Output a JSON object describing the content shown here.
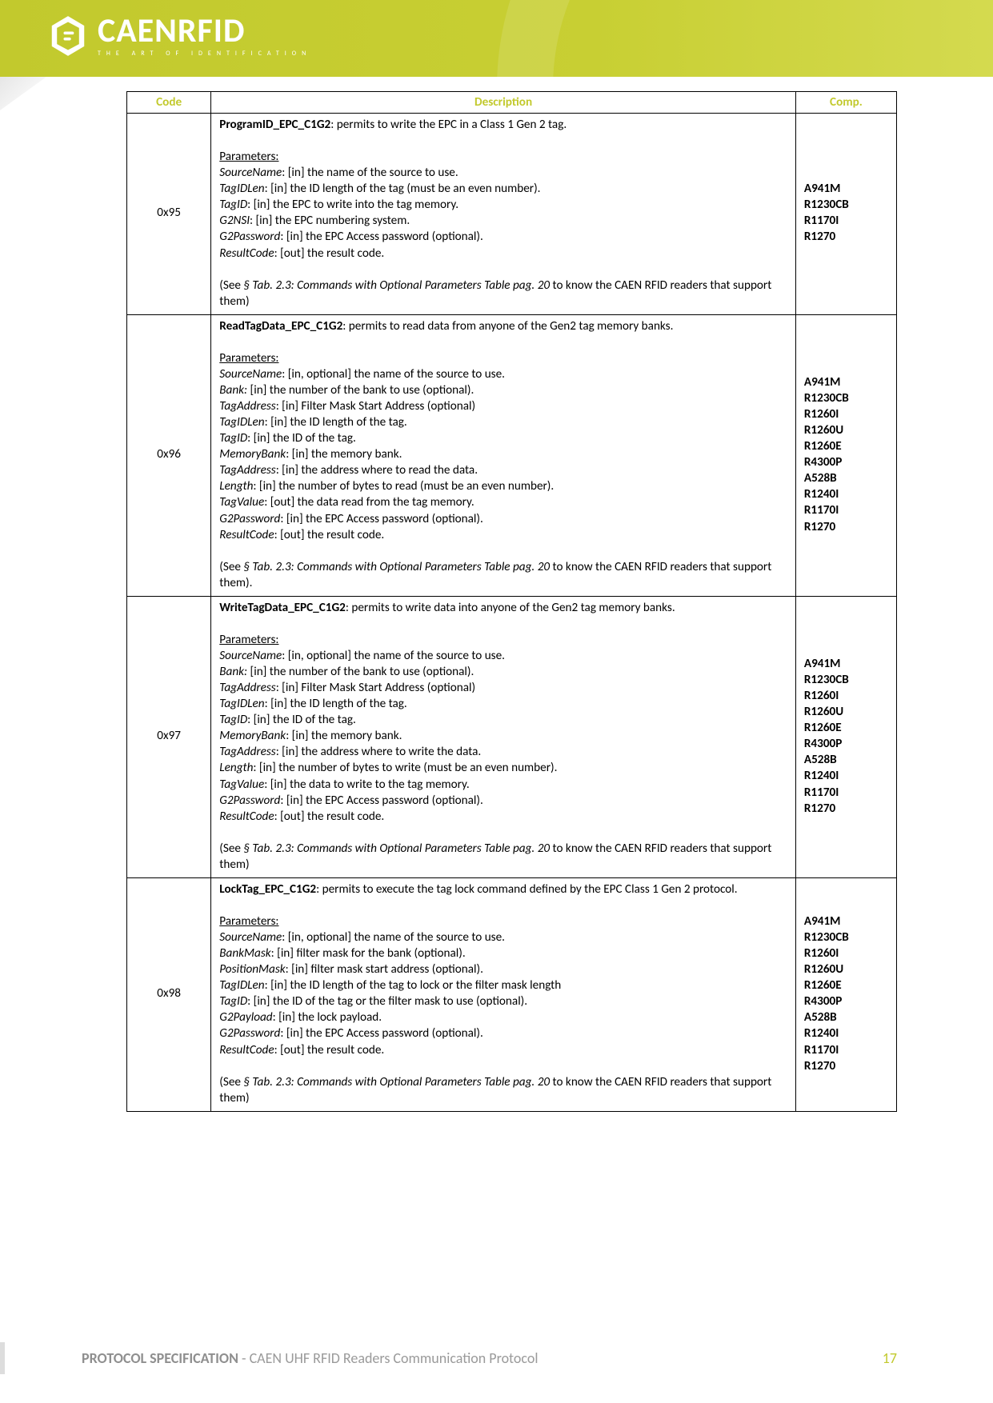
{
  "logo": {
    "brand": "CAENRFID",
    "tagline": "THE ART OF IDENTIFICATION"
  },
  "table": {
    "headers": {
      "code": "Code",
      "description": "Description",
      "comp": "Comp."
    },
    "rows": [
      {
        "code": "0x95",
        "title": "ProgramID_EPC_C1G2",
        "title_rest": ": permits to write the EPC in a Class 1 Gen 2 tag.",
        "params_header": "Parameters:",
        "params": [
          {
            "name": "SourceName",
            "rest": ": [in] the name of the source to use."
          },
          {
            "name": "TagIDLen",
            "rest": ": [in] the ID length of the tag (must be an even number)."
          },
          {
            "name": "TagID",
            "rest": ": [in] the EPC to write into the tag memory."
          },
          {
            "name": "G2NSI",
            "rest": ": [in] the EPC numbering system."
          },
          {
            "name": "G2Password",
            "rest": ": [in] the EPC Access password (optional)."
          },
          {
            "name": "ResultCode",
            "rest": ": [out] the result code."
          }
        ],
        "see_pre": "(See ",
        "see_ref": "§ Tab. 2.3: Commands with Optional Parameters Table pag. 20",
        "see_post": " to know the CAEN RFID readers that support them)",
        "comp": [
          "A941M",
          "R1230CB",
          "R1170I",
          "R1270"
        ]
      },
      {
        "code": "0x96",
        "title": "ReadTagData_EPC_C1G2",
        "title_rest": ": permits to read data from anyone of the Gen2 tag memory banks.",
        "params_header": "Parameters:",
        "params": [
          {
            "name": "SourceName",
            "rest": ": [in, optional] the name of the source to use."
          },
          {
            "name": "Bank:",
            "rest": " [in] the number of the bank to use (optional)."
          },
          {
            "name": "TagAddress",
            "rest": ": [in] Filter Mask Start Address (optional)"
          },
          {
            "name": "TagIDLen",
            "rest": ": [in] the ID length of the tag."
          },
          {
            "name": "TagID",
            "rest": ": [in] the ID of the tag."
          },
          {
            "name": "MemoryBank",
            "rest": ": [in] the memory bank."
          },
          {
            "name": "TagAddress",
            "rest": ": [in] the address where to read the data."
          },
          {
            "name": "Length",
            "rest": ": [in] the number of bytes to read (must be an even number)."
          },
          {
            "name": "TagValue",
            "rest": ": [out] the data read from the tag memory."
          },
          {
            "name": "G2Password",
            "rest": ": [in] the EPC Access password (optional)."
          },
          {
            "name": "ResultCode",
            "rest": ": [out] the result code."
          }
        ],
        "see_pre": "(See ",
        "see_ref": "§ Tab. 2.3: Commands with Optional Parameters Table pag. 20",
        "see_post": " to know the CAEN RFID readers that support them).",
        "comp": [
          "A941M",
          "R1230CB",
          "R1260I",
          "R1260U",
          "R1260E",
          "R4300P",
          "A528B",
          "R1240I",
          "R1170I",
          "R1270"
        ]
      },
      {
        "code": "0x97",
        "title": "WriteTagData_EPC_C1G2",
        "title_rest": ": permits to write data into anyone of the Gen2 tag memory banks.",
        "params_header": "Parameters:",
        "params": [
          {
            "name": "SourceName",
            "rest": ": [in, optional] the name of the source to use."
          },
          {
            "name": "Bank:",
            "rest": " [in] the number of the bank to use (optional)."
          },
          {
            "name": "TagAddress",
            "rest": ": [in] Filter Mask Start Address (optional)"
          },
          {
            "name": "TagIDLen",
            "rest": ": [in] the ID length of the tag."
          },
          {
            "name": "TagID",
            "rest": ": [in] the ID of the tag."
          },
          {
            "name": "MemoryBank",
            "rest": ": [in] the memory bank."
          },
          {
            "name": "TagAddress",
            "rest": ": [in] the address where to write the data."
          },
          {
            "name": "Length",
            "rest": ": [in] the number of bytes to write (must be an even number)."
          },
          {
            "name": "TagValue",
            "rest": ": [in] the data to write to the tag memory."
          },
          {
            "name": "G2Password",
            "rest": ": [in] the EPC Access password (optional)."
          },
          {
            "name": "ResultCode",
            "rest": ": [out] the result code."
          }
        ],
        "see_pre": "(See ",
        "see_ref": "§ Tab. 2.3: Commands with Optional Parameters Table pag. 20",
        "see_post": " to know the CAEN RFID readers that support them)",
        "comp": [
          "A941M",
          "R1230CB",
          "R1260I",
          "R1260U",
          "R1260E",
          "R4300P",
          "A528B",
          "R1240I",
          "R1170I",
          "R1270"
        ]
      },
      {
        "code": "0x98",
        "title": "LockTag_EPC_C1G2",
        "title_rest": ": permits to execute the tag lock command defined by the EPC Class 1 Gen 2 protocol.",
        "params_header": "Parameters:",
        "params": [
          {
            "name": "SourceName",
            "rest": ": [in, optional] the name of the source to use."
          },
          {
            "name": "BankMask",
            "rest": ": [in] filter mask for the bank (optional)."
          },
          {
            "name": "PositionMask",
            "rest": ": [in] filter mask start address (optional)."
          },
          {
            "name": "TagIDLen",
            "rest": ": [in] the ID length of the tag to lock or the filter mask length"
          },
          {
            "name": "TagID",
            "rest": ": [in] the ID of the tag or the filter mask to use (optional)."
          },
          {
            "name": "G2Payload",
            "rest": ": [in] the lock payload."
          },
          {
            "name": "G2Password",
            "rest": ": [in] the EPC Access password (optional)."
          },
          {
            "name": "ResultCode",
            "rest": ": [out] the result code."
          }
        ],
        "see_pre": "(See ",
        "see_ref": "§ Tab. 2.3: Commands with Optional Parameters Table pag. 20",
        "see_post": " to know the CAEN RFID readers that support them)",
        "comp": [
          "A941M",
          "R1230CB",
          "R1260I",
          "R1260U",
          "R1260E",
          "R4300P",
          "A528B",
          "R1240I",
          "R1170I",
          "R1270"
        ]
      }
    ]
  },
  "footer": {
    "bold": "PROTOCOL SPECIFICATION",
    "rest": " - CAEN UHF RFID Readers Communication Protocol",
    "page": "17"
  }
}
